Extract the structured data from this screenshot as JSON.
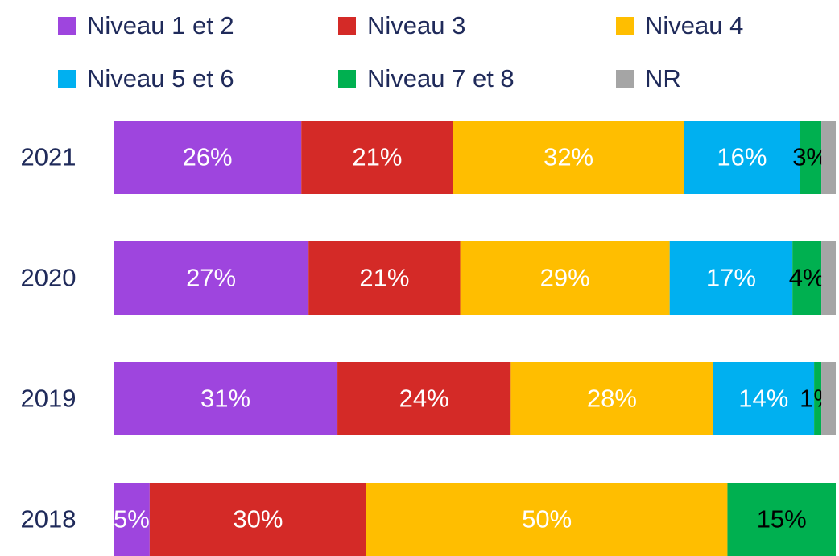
{
  "chart_data": {
    "type": "stacked-barh",
    "categories": [
      "2021",
      "2020",
      "2019",
      "2018"
    ],
    "xlim": [
      0,
      100
    ],
    "legend": "top",
    "series": [
      {
        "name": "Niveau 1 et 2",
        "color": "#9e45de",
        "label_color": "#ffffff",
        "values": [
          26,
          27,
          31,
          5
        ],
        "value_labels": [
          "26%",
          "27%",
          "31%",
          "5%"
        ]
      },
      {
        "name": "Niveau 3",
        "color": "#d42a27",
        "label_color": "#ffffff",
        "values": [
          21,
          21,
          24,
          30
        ],
        "value_labels": [
          "21%",
          "21%",
          "24%",
          "30%"
        ]
      },
      {
        "name": "Niveau 4",
        "color": "#ffbe00",
        "label_color": "#ffffff",
        "values": [
          32,
          29,
          28,
          50
        ],
        "value_labels": [
          "32%",
          "29%",
          "28%",
          "50%"
        ]
      },
      {
        "name": "Niveau 5 et 6",
        "color": "#00b0f0",
        "label_color": "#ffffff",
        "values": [
          16,
          17,
          14,
          null
        ],
        "value_labels": [
          "16%",
          "17%",
          "14%",
          null
        ]
      },
      {
        "name": "Niveau 7 et 8",
        "color": "#00b050",
        "label_color": "#000000",
        "values": [
          3,
          4,
          1,
          15
        ],
        "value_labels": [
          "3%",
          "4%",
          "1%",
          "15%"
        ]
      },
      {
        "name": "NR",
        "color": "#a5a5a5",
        "label_color": "#000000",
        "values": [
          2,
          2,
          2,
          null
        ],
        "value_labels": [
          null,
          null,
          null,
          null
        ]
      }
    ]
  }
}
